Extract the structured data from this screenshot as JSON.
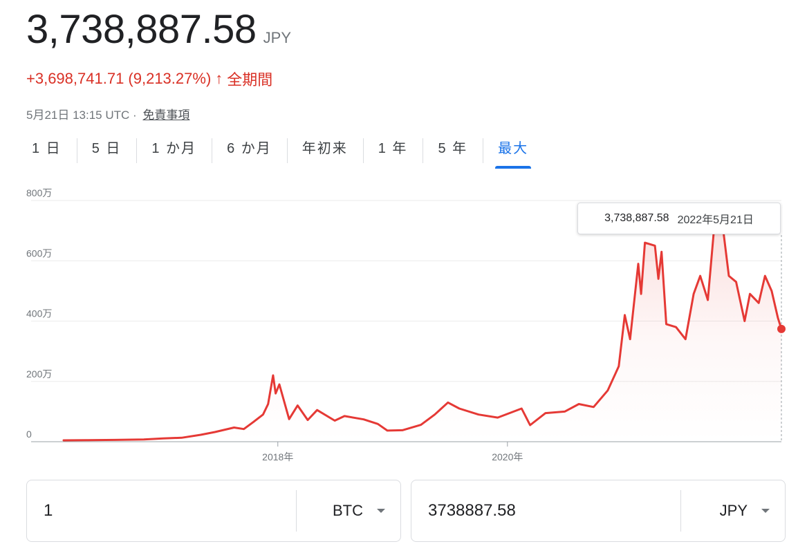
{
  "quote": {
    "price": "3,738,887.58",
    "currency": "JPY",
    "change": "+3,698,741.71 (9,213.27%)",
    "arrow": "↑",
    "period": "全期間",
    "timestamp": "5月21日 13:15 UTC ·",
    "disclaimer": "免責事項"
  },
  "tabs": [
    {
      "label": "1 日",
      "active": false
    },
    {
      "label": "5 日",
      "active": false
    },
    {
      "label": "1 か月",
      "active": false
    },
    {
      "label": "6 か月",
      "active": false
    },
    {
      "label": "年初来",
      "active": false
    },
    {
      "label": "1 年",
      "active": false
    },
    {
      "label": "5 年",
      "active": false
    },
    {
      "label": "最大",
      "active": true
    }
  ],
  "tooltip": {
    "value": "3,738,887.58",
    "date": "2022年5月21日"
  },
  "converter": {
    "from_amount": "1",
    "from_unit": "BTC",
    "to_amount": "3738887.58",
    "to_unit": "JPY"
  },
  "colors": {
    "line": "#e53935",
    "active_tab": "#1a73e8",
    "change": "#d93025"
  },
  "chart_data": {
    "type": "line",
    "y_ticks": [
      0,
      2000000,
      4000000,
      6000000,
      8000000
    ],
    "y_tick_labels": [
      "0",
      "200万",
      "400万",
      "600万",
      "800万"
    ],
    "ylim": [
      0,
      8000000
    ],
    "x_tick_labels": [
      {
        "date": "2018-01-01",
        "label": "2018年"
      },
      {
        "date": "2020-01-01",
        "label": "2020年"
      }
    ],
    "xlim": [
      "2016-02-20",
      "2022-05-21"
    ],
    "grid": true,
    "series": [
      {
        "points": [
          [
            "2016-02-20",
            45000
          ],
          [
            "2016-05-01",
            50000
          ],
          [
            "2016-08-01",
            60000
          ],
          [
            "2016-11-01",
            75000
          ],
          [
            "2017-01-01",
            110000
          ],
          [
            "2017-03-01",
            130000
          ],
          [
            "2017-05-01",
            230000
          ],
          [
            "2017-06-15",
            320000
          ],
          [
            "2017-08-15",
            470000
          ],
          [
            "2017-09-15",
            420000
          ],
          [
            "2017-10-15",
            650000
          ],
          [
            "2017-11-15",
            900000
          ],
          [
            "2017-12-01",
            1250000
          ],
          [
            "2017-12-17",
            2200000
          ],
          [
            "2017-12-25",
            1600000
          ],
          [
            "2018-01-06",
            1900000
          ],
          [
            "2018-02-06",
            750000
          ],
          [
            "2018-03-05",
            1200000
          ],
          [
            "2018-04-06",
            720000
          ],
          [
            "2018-05-06",
            1050000
          ],
          [
            "2018-07-01",
            700000
          ],
          [
            "2018-08-01",
            850000
          ],
          [
            "2018-10-01",
            740000
          ],
          [
            "2018-11-15",
            590000
          ],
          [
            "2018-12-15",
            370000
          ],
          [
            "2019-02-01",
            380000
          ],
          [
            "2019-04-01",
            560000
          ],
          [
            "2019-05-15",
            900000
          ],
          [
            "2019-06-26",
            1300000
          ],
          [
            "2019-08-01",
            1100000
          ],
          [
            "2019-10-01",
            900000
          ],
          [
            "2019-12-01",
            800000
          ],
          [
            "2020-02-15",
            1100000
          ],
          [
            "2020-03-13",
            550000
          ],
          [
            "2020-05-01",
            950000
          ],
          [
            "2020-07-01",
            1000000
          ],
          [
            "2020-08-15",
            1250000
          ],
          [
            "2020-10-01",
            1150000
          ],
          [
            "2020-11-15",
            1700000
          ],
          [
            "2020-12-20",
            2500000
          ],
          [
            "2021-01-08",
            4200000
          ],
          [
            "2021-01-25",
            3400000
          ],
          [
            "2021-02-20",
            5900000
          ],
          [
            "2021-03-01",
            4900000
          ],
          [
            "2021-03-13",
            6600000
          ],
          [
            "2021-04-14",
            6500000
          ],
          [
            "2021-04-25",
            5400000
          ],
          [
            "2021-05-05",
            6300000
          ],
          [
            "2021-05-20",
            3900000
          ],
          [
            "2021-06-20",
            3800000
          ],
          [
            "2021-07-20",
            3400000
          ],
          [
            "2021-08-15",
            4900000
          ],
          [
            "2021-09-05",
            5500000
          ],
          [
            "2021-09-29",
            4700000
          ],
          [
            "2021-10-20",
            7200000
          ],
          [
            "2021-11-09",
            7700000
          ],
          [
            "2021-12-05",
            5500000
          ],
          [
            "2021-12-28",
            5300000
          ],
          [
            "2022-01-24",
            4000000
          ],
          [
            "2022-02-10",
            4900000
          ],
          [
            "2022-03-10",
            4600000
          ],
          [
            "2022-03-30",
            5500000
          ],
          [
            "2022-04-20",
            5000000
          ],
          [
            "2022-05-10",
            4100000
          ],
          [
            "2022-05-21",
            3738887
          ]
        ]
      }
    ]
  }
}
